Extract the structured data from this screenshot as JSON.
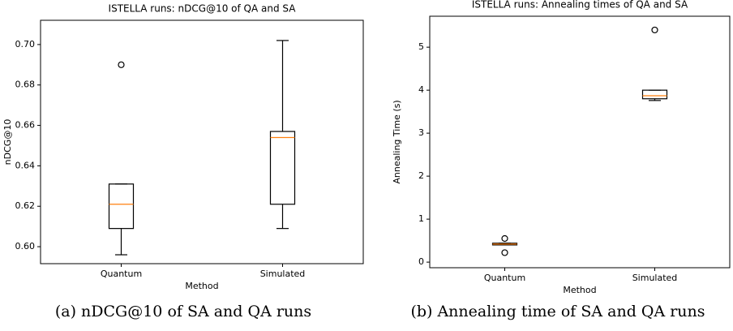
{
  "chart_data": [
    {
      "type": "box",
      "title": "ISTELLA runs: nDCG@10 of QA and SA",
      "xlabel": "Method",
      "ylabel": "nDCG@10",
      "caption": "(a) nDCG@10 of SA and QA runs",
      "categories": [
        "Quantum",
        "Simulated"
      ],
      "boxes": [
        {
          "whislo": 0.596,
          "q1": 0.609,
          "med": 0.621,
          "q3": 0.631,
          "whishi": 0.631,
          "fliers": [
            0.69
          ]
        },
        {
          "whislo": 0.609,
          "q1": 0.621,
          "med": 0.654,
          "q3": 0.657,
          "whishi": 0.702,
          "fliers": []
        }
      ],
      "box_color": "#000000",
      "median_color": "#ff7f0e",
      "ylim": [
        0.5916,
        0.712
      ],
      "yticks": [
        {
          "value": 0.6,
          "label": "0.60"
        },
        {
          "value": 0.62,
          "label": "0.62"
        },
        {
          "value": 0.64,
          "label": "0.64"
        },
        {
          "value": 0.66,
          "label": "0.66"
        },
        {
          "value": 0.68,
          "label": "0.68"
        },
        {
          "value": 0.7,
          "label": "0.70"
        }
      ]
    },
    {
      "type": "box",
      "title": "ISTELLA runs: Annealing times of QA and SA",
      "xlabel": "Method",
      "ylabel": "Annealing Time (s)",
      "caption": "(b) Annealing time of SA and QA runs",
      "categories": [
        "Quantum",
        "Simulated"
      ],
      "boxes": [
        {
          "whislo": 0.4,
          "q1": 0.4,
          "med": 0.42,
          "q3": 0.44,
          "whishi": 0.44,
          "fliers": [
            0.55,
            0.22
          ]
        },
        {
          "whislo": 3.76,
          "q1": 3.8,
          "med": 3.87,
          "q3": 4.0,
          "whishi": 4.0,
          "fliers": [
            5.4
          ]
        }
      ],
      "box_color": "#000000",
      "median_color": "#ff7f0e",
      "ylim": [
        -0.13,
        5.72
      ],
      "yticks": [
        0,
        1,
        2,
        3,
        4,
        5
      ]
    }
  ]
}
